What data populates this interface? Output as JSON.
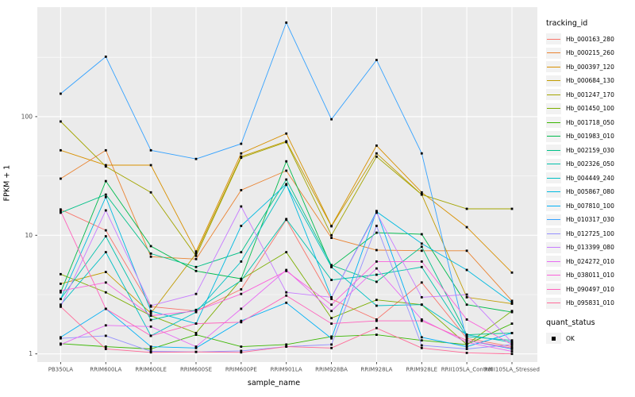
{
  "axes": {
    "x_label": "sample_name",
    "y_label": "FPKM + 1",
    "y_tick_labels": [
      "1",
      "10",
      "100"
    ],
    "tick_text_color": "#4D4D4D",
    "tick_mark_color": "#333333"
  },
  "legend": {
    "tracking_title": "tracking_id",
    "quant_title": "quant_status",
    "quant_items": [
      {
        "label": "OK",
        "marker": "black-square"
      }
    ],
    "key_background": "#F2F2F2"
  },
  "chart_data": {
    "type": "line",
    "title": "",
    "xlabel": "sample_name",
    "ylabel": "FPKM + 1",
    "y_scale": "log10",
    "ylim": [
      0.87,
      820
    ],
    "y_major_breaks": [
      1,
      10,
      100
    ],
    "y_minor_breaks": [
      3.162,
      31.62,
      316.2
    ],
    "grid": true,
    "grid_color": "#FFFFFF",
    "panel_background": "#EBEBEB",
    "marker": "black-square",
    "marker_color": "#000000",
    "legend_position": "right",
    "x": [
      "PB350LA",
      "RRIM600LA",
      "RRIM600LE",
      "RRIM600SE",
      "RRIM600PE",
      "RRIM901LA",
      "RRIM928BA",
      "RRIM928LA",
      "RRIM928LE",
      "RRII105LA_Control",
      "RRII105LA_Stressed"
    ],
    "series": [
      {
        "name": "Hb_000163_280",
        "color": "#F8766D",
        "values": [
          16.5,
          11,
          2.5,
          2.3,
          3.5,
          13.5,
          2.9,
          1.95,
          4.0,
          1.35,
          1.15
        ]
      },
      {
        "name": "Hb_000215_260",
        "color": "#EA8331",
        "values": [
          30,
          52,
          6.6,
          6.3,
          24,
          35,
          9.5,
          7.5,
          7.4,
          7.4,
          2.8
        ]
      },
      {
        "name": "Hb_000397_120",
        "color": "#D89000",
        "values": [
          52,
          39,
          39,
          7.3,
          49,
          72,
          12,
          57,
          23,
          11.7,
          4.85
        ]
      },
      {
        "name": "Hb_000684_130",
        "color": "#C09B00",
        "values": [
          3.9,
          4.9,
          2.2,
          7.0,
          46,
          62,
          11.9,
          49,
          22,
          3.0,
          2.65
        ]
      },
      {
        "name": "Hb_001247_170",
        "color": "#A3A500",
        "values": [
          91,
          38,
          23,
          6.7,
          45,
          61,
          10,
          46,
          22,
          16.7,
          16.7
        ]
      },
      {
        "name": "Hb_001450_100",
        "color": "#7CAE00",
        "values": [
          4.7,
          3.3,
          2.1,
          1.5,
          4.25,
          7.2,
          2.0,
          2.85,
          2.6,
          1.2,
          2.3
        ]
      },
      {
        "name": "Hb_001718_050",
        "color": "#39B600",
        "values": [
          1.22,
          1.15,
          1.1,
          1.45,
          1.15,
          1.2,
          1.4,
          1.45,
          1.3,
          1.2,
          1.8
        ]
      },
      {
        "name": "Hb_001983_010",
        "color": "#00BB4E",
        "values": [
          3.3,
          28.6,
          8.1,
          5.0,
          4.3,
          42,
          5.4,
          10.5,
          10.2,
          2.6,
          2.25
        ]
      },
      {
        "name": "Hb_002159_030",
        "color": "#00C087",
        "values": [
          15.5,
          22,
          7.0,
          5.4,
          7.2,
          29.5,
          5.6,
          4.05,
          8.0,
          1.45,
          1.5
        ]
      },
      {
        "name": "Hb_002326_050",
        "color": "#00C1AB",
        "values": [
          2.9,
          9.8,
          1.93,
          2.35,
          4.15,
          13.7,
          4.2,
          4.65,
          5.4,
          1.4,
          1.3
        ]
      },
      {
        "name": "Hb_004449_240",
        "color": "#00BFC4",
        "values": [
          2.6,
          7.2,
          1.42,
          2.25,
          6.0,
          26.6,
          5.4,
          2.55,
          2.6,
          1.45,
          1.25
        ]
      },
      {
        "name": "Hb_005867_080",
        "color": "#00BAE0",
        "values": [
          2.9,
          21,
          2.3,
          1.8,
          12,
          27,
          3.0,
          15.8,
          8.5,
          5.1,
          2.7
        ]
      },
      {
        "name": "Hb_007810_100",
        "color": "#00B0F6",
        "values": [
          1.38,
          2.4,
          1.15,
          1.12,
          1.9,
          2.7,
          1.35,
          16,
          1.38,
          1.15,
          1.5
        ]
      },
      {
        "name": "Hb_010317_030",
        "color": "#35A2FF",
        "values": [
          156,
          320,
          52,
          44,
          59,
          620,
          95,
          300,
          49,
          1.3,
          1.1
        ]
      },
      {
        "name": "Hb_012725_100",
        "color": "#9590FF",
        "values": [
          1.35,
          1.42,
          1.05,
          1.04,
          1.06,
          1.15,
          1.2,
          12,
          1.18,
          1.1,
          1.2
        ]
      },
      {
        "name": "Hb_013399_080",
        "color": "#C77CFF",
        "values": [
          2.5,
          16.2,
          2.55,
          3.2,
          17.5,
          3.3,
          3.0,
          15.5,
          3.0,
          3.16,
          1.25
        ]
      },
      {
        "name": "Hb_024272_010",
        "color": "#E76BF3",
        "values": [
          1.2,
          1.74,
          1.7,
          1.15,
          2.4,
          5.1,
          2.3,
          5.25,
          1.95,
          1.25,
          1.05
        ]
      },
      {
        "name": "Hb_038011_010",
        "color": "#FA62DB",
        "values": [
          3.4,
          4.0,
          2.1,
          2.3,
          3.2,
          5.0,
          2.6,
          6.0,
          6.0,
          1.95,
          1.2
        ]
      },
      {
        "name": "Hb_090497_010",
        "color": "#FF62BC",
        "values": [
          16,
          2.4,
          1.42,
          1.8,
          1.85,
          3.1,
          1.8,
          1.9,
          1.9,
          1.3,
          1.12
        ]
      },
      {
        "name": "Hb_095831_010",
        "color": "#FF6A98",
        "values": [
          2.5,
          1.1,
          1.03,
          1.04,
          1.03,
          1.15,
          1.12,
          1.65,
          1.12,
          1.02,
          1.0
        ]
      }
    ]
  }
}
